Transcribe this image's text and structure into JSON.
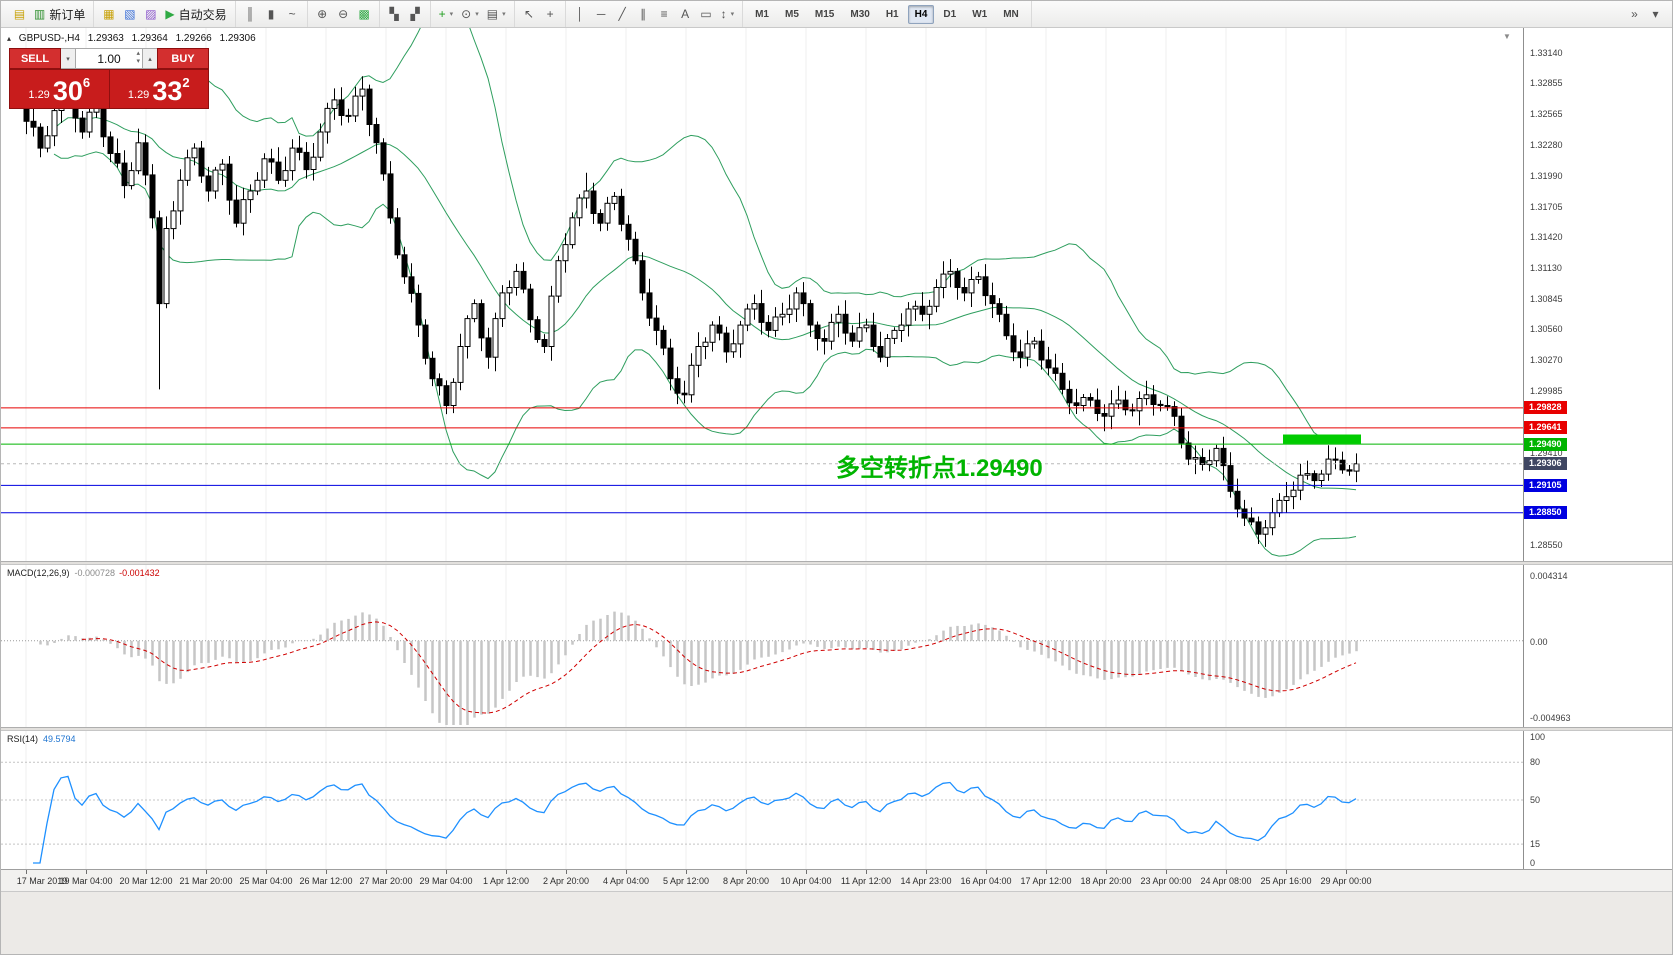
{
  "icons": {
    "collapse": "▴",
    "scroll_marker": "▼",
    "caret_down": "▾",
    "caret_up": "▴",
    "caret_up_small": "▴",
    "caret_down_small": "▾"
  },
  "toolbar": {
    "groups": [
      {
        "items": [
          {
            "id": "chart-shortcut",
            "glyph": "▤",
            "color": "#c8a20a"
          },
          {
            "id": "new-order",
            "glyph": "▥",
            "color": "#2d8f2d",
            "label": "新订单"
          }
        ]
      },
      {
        "items": [
          {
            "id": "market-watch",
            "glyph": "▦",
            "color": "#c8a20a"
          },
          {
            "id": "data-window",
            "glyph": "▧",
            "color": "#3a6fd8"
          },
          {
            "id": "navigator",
            "glyph": "▨",
            "color": "#8a55cc"
          },
          {
            "id": "autotrading",
            "glyph": "▶",
            "color": "#2faa44",
            "label": "自动交易"
          }
        ]
      },
      {
        "items": [
          {
            "id": "bars-chart",
            "glyph": "║"
          },
          {
            "id": "candlestick-chart",
            "glyph": "▮"
          },
          {
            "id": "line-chart",
            "glyph": "~"
          }
        ]
      },
      {
        "items": [
          {
            "id": "zoom-in",
            "glyph": "⊕"
          },
          {
            "id": "zoom-out",
            "glyph": "⊖"
          },
          {
            "id": "tile-windows",
            "glyph": "▩",
            "color": "#2faa44"
          }
        ]
      },
      {
        "items": [
          {
            "id": "arrange-windows",
            "glyph": "▚"
          },
          {
            "id": "cascade-windows",
            "glyph": "▞"
          }
        ]
      },
      {
        "items": [
          {
            "id": "indicators",
            "glyph": "+",
            "color": "#1f9d1f",
            "caret": true
          },
          {
            "id": "periods",
            "glyph": "⊙",
            "caret": true
          },
          {
            "id": "templates",
            "glyph": "▤",
            "caret": true
          }
        ]
      },
      {
        "items": [
          {
            "id": "cursor",
            "glyph": "↖"
          },
          {
            "id": "crosshair",
            "glyph": "+"
          }
        ]
      },
      {
        "items": [
          {
            "id": "vertical-line",
            "glyph": "│"
          },
          {
            "id": "horizontal-line",
            "glyph": "─"
          },
          {
            "id": "trendline",
            "glyph": "╱"
          },
          {
            "id": "equidistant-channel",
            "glyph": "∥"
          },
          {
            "id": "fibonacci",
            "glyph": "≡"
          },
          {
            "id": "text",
            "glyph": "A"
          },
          {
            "id": "text-label",
            "glyph": "▭"
          },
          {
            "id": "arrows",
            "glyph": "↕",
            "caret": true
          }
        ]
      }
    ],
    "timeframes": [
      "M1",
      "M5",
      "M15",
      "M30",
      "H1",
      "H4",
      "D1",
      "W1",
      "MN"
    ],
    "active_timeframe": "H4",
    "right_icons": [
      {
        "id": "toolbar-overflow",
        "glyph": "»"
      },
      {
        "id": "toolbar-more",
        "glyph": "▾"
      }
    ]
  },
  "chart": {
    "header": {
      "symbol": "GBPUSD-,H4",
      "open": "1.29363",
      "high": "1.29364",
      "low": "1.29266",
      "close": "1.29306"
    },
    "trade_panel": {
      "sell_label": "SELL",
      "buy_label": "BUY",
      "volume": "1.00",
      "sell_price": {
        "small": "1.29",
        "big": "30",
        "sup": "6"
      },
      "buy_price": {
        "small": "1.29",
        "big": "33",
        "sup": "2"
      }
    },
    "annotation": {
      "text": "多空转折点1.29490",
      "color": "#00b400"
    },
    "levels": [
      {
        "price": 1.29828,
        "label": "1.29828",
        "color": "#e80000"
      },
      {
        "price": 1.29641,
        "label": "1.29641",
        "color": "#e80000"
      },
      {
        "price": 1.2949,
        "label": "1.29490",
        "color": "#00b400"
      },
      {
        "price": 1.29105,
        "label": "1.29105",
        "color": "#0000e0"
      },
      {
        "price": 1.2885,
        "label": "1.28850",
        "color": "#0000e0"
      }
    ],
    "bid": {
      "price": 1.29306,
      "label": "1.29306",
      "tag_color": "#3f4662"
    },
    "highlight_rect": {
      "from_bar": 180,
      "to_bar": 191,
      "price_top": 1.2958,
      "price_bottom": 1.29492,
      "color": "#00cc00"
    },
    "scale_labels": [
      "1.33140",
      "1.32855",
      "1.32565",
      "1.32280",
      "1.31990",
      "1.31705",
      "1.31420",
      "1.31130",
      "1.30845",
      "1.30560",
      "1.30270",
      "1.29985",
      "1.29410",
      "1.28550"
    ]
  },
  "macd": {
    "title": "MACD(12,26,9)",
    "main_value": "-0.000728",
    "signal_value": "-0.001432",
    "fast": 12,
    "slow": 26,
    "signal_period": 9,
    "scale": {
      "max": "0.004314",
      "zero": "0.00",
      "min": "-0.004963"
    }
  },
  "rsi": {
    "title": "RSI(14)",
    "value": "49.5794",
    "period": 14,
    "scale_labels": [
      "100",
      "80",
      "50",
      "15",
      "0"
    ],
    "levels": [
      80,
      50,
      15
    ]
  },
  "time_axis": {
    "labels": [
      "17 Mar 2019",
      "19 Mar 04:00",
      "20 Mar 12:00",
      "21 Mar 20:00",
      "25 Mar 04:00",
      "26 Mar 12:00",
      "27 Mar 20:00",
      "29 Mar 04:00",
      "1 Apr 12:00",
      "2 Apr 20:00",
      "4 Apr 04:00",
      "5 Apr 12:00",
      "8 Apr 20:00",
      "10 Apr 04:00",
      "11 Apr 12:00",
      "14 Apr 23:00",
      "16 Apr 04:00",
      "17 Apr 12:00",
      "18 Apr 20:00",
      "23 Apr 00:00",
      "24 Apr 08:00",
      "25 Apr 16:00",
      "29 Apr 00:00"
    ]
  },
  "chart_data": {
    "type": "candlestick",
    "symbol": "GBPUSD-",
    "timeframe": "H4",
    "price_axis": {
      "top": 1.3337,
      "bottom": 1.284
    },
    "indicators": [
      {
        "name": "Bollinger Bands",
        "period": 20,
        "deviation": 2
      },
      {
        "name": "MACD",
        "fast": 12,
        "slow": 26,
        "signal_period": 9,
        "main": -0.000728,
        "signal": -0.001432
      },
      {
        "name": "RSI",
        "period": 14,
        "value": 49.5794
      }
    ],
    "closes": [
      1.325,
      1.32445,
      1.3225,
      1.32365,
      1.326,
      1.3277,
      1.328,
      1.3253,
      1.324,
      1.32585,
      1.3265,
      1.32355,
      1.322,
      1.3211,
      1.319,
      1.3204,
      1.323,
      1.32,
      1.316,
      1.308,
      1.315,
      1.31665,
      1.3195,
      1.3216,
      1.3225,
      1.3199,
      1.3185,
      1.32045,
      1.321,
      1.31765,
      1.3155,
      1.3177,
      1.3185,
      1.3195,
      1.3215,
      1.3212,
      1.3195,
      1.3204,
      1.3225,
      1.3221,
      1.3205,
      1.32165,
      1.324,
      1.3262,
      1.327,
      1.32555,
      1.3255,
      1.32735,
      1.328,
      1.3247,
      1.323,
      1.3201,
      1.316,
      1.31255,
      1.3105,
      1.30895,
      1.306,
      1.3029,
      1.301,
      1.30035,
      1.2985,
      1.30065,
      1.304,
      1.3066,
      1.308,
      1.3048,
      1.303,
      1.3066,
      1.309,
      1.3095,
      1.311,
      1.30935,
      1.3065,
      1.30465,
      1.304,
      1.3087,
      1.312,
      1.3135,
      1.316,
      1.31785,
      1.3185,
      1.3164,
      1.3155,
      1.31735,
      1.318,
      1.3154,
      1.314,
      1.312,
      1.309,
      1.30665,
      1.3055,
      1.30385,
      1.301,
      1.29965,
      1.2995,
      1.30225,
      1.304,
      1.3044,
      1.306,
      1.30525,
      1.3035,
      1.30425,
      1.306,
      1.3075,
      1.308,
      1.30625,
      1.3055,
      1.30675,
      1.307,
      1.3075,
      1.309,
      1.308,
      1.306,
      1.30475,
      1.3045,
      1.30625,
      1.307,
      1.30525,
      1.3045,
      1.30575,
      1.306,
      1.304,
      1.303,
      1.30475,
      1.3055,
      1.306,
      1.3075,
      1.30775,
      1.307,
      1.30775,
      1.3095,
      1.31075,
      1.311,
      1.3095,
      1.309,
      1.31025,
      1.3105,
      1.30875,
      1.308,
      1.307,
      1.305,
      1.3035,
      1.303,
      1.30425,
      1.3045,
      1.30275,
      1.302,
      1.3015,
      1.3,
      1.29875,
      1.2985,
      1.29925,
      1.299,
      1.29775,
      1.2975,
      1.29865,
      1.299,
      1.2981,
      1.298,
      1.29915,
      1.2995,
      1.2986,
      1.2985,
      1.2984,
      1.2975,
      1.295,
      1.2935,
      1.29365,
      1.293,
      1.29335,
      1.2945,
      1.2929,
      1.2905,
      1.28885,
      1.288,
      1.28765,
      1.2865,
      1.2871,
      1.2885,
      1.28965,
      1.29,
      1.2906,
      1.292,
      1.29215,
      1.2915,
      1.2921,
      1.2935,
      1.2934,
      1.2925,
      1.29238,
      1.29306
    ],
    "wick_low_overrides": {
      "19": 1.3,
      "60": 1.2977,
      "94": 1.2987,
      "176": 1.2856
    },
    "wick_high_overrides": {
      "6": 1.329,
      "48": 1.3292,
      "80": 1.3202,
      "132": 1.3121
    }
  }
}
